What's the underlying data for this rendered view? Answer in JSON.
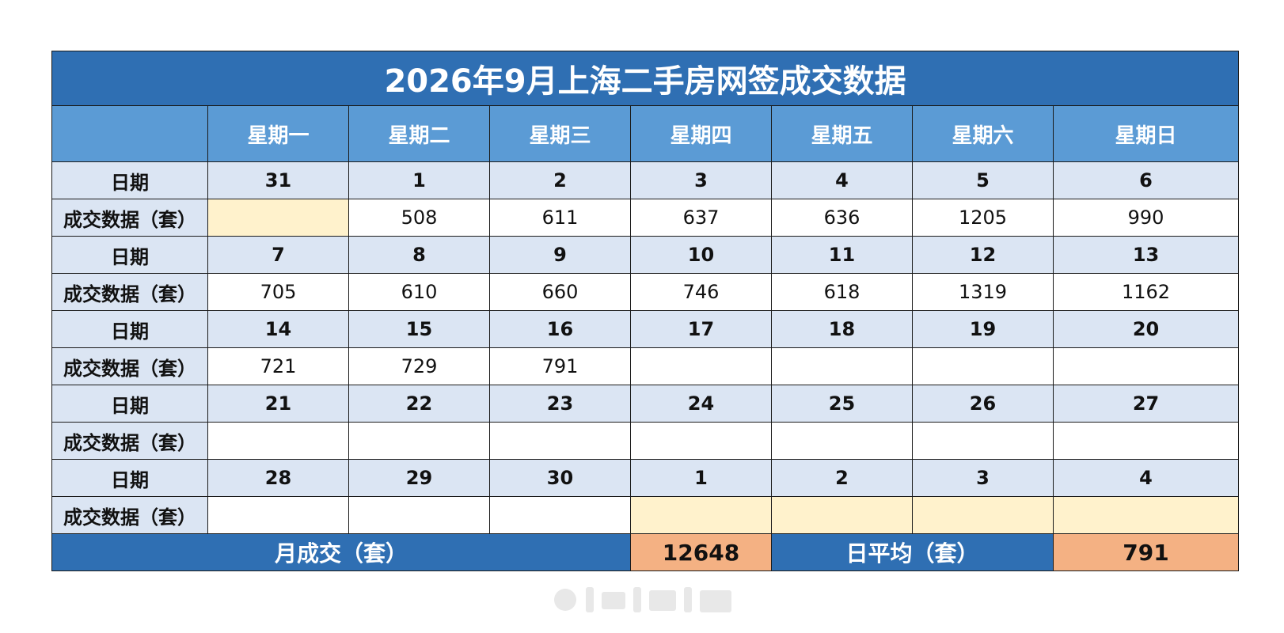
{
  "title": "2026年9月上海二手房网签成交数据",
  "weekdays": [
    "星期一",
    "星期二",
    "星期三",
    "星期四",
    "星期五",
    "星期六",
    "星期日"
  ],
  "date_label": "日期",
  "value_label": "成交数据（套）",
  "weeks": [
    {
      "dates": [
        "31",
        "1",
        "2",
        "3",
        "4",
        "5",
        "6"
      ],
      "values": [
        "",
        "508",
        "611",
        "637",
        "636",
        "1205",
        "990"
      ],
      "out_of_month": [
        true,
        false,
        false,
        false,
        false,
        false,
        false
      ]
    },
    {
      "dates": [
        "7",
        "8",
        "9",
        "10",
        "11",
        "12",
        "13"
      ],
      "values": [
        "705",
        "610",
        "660",
        "746",
        "618",
        "1319",
        "1162"
      ],
      "out_of_month": [
        false,
        false,
        false,
        false,
        false,
        false,
        false
      ]
    },
    {
      "dates": [
        "14",
        "15",
        "16",
        "17",
        "18",
        "19",
        "20"
      ],
      "values": [
        "721",
        "729",
        "791",
        "",
        "",
        "",
        ""
      ],
      "out_of_month": [
        false,
        false,
        false,
        false,
        false,
        false,
        false
      ]
    },
    {
      "dates": [
        "21",
        "22",
        "23",
        "24",
        "25",
        "26",
        "27"
      ],
      "values": [
        "",
        "",
        "",
        "",
        "",
        "",
        ""
      ],
      "out_of_month": [
        false,
        false,
        false,
        false,
        false,
        false,
        false
      ]
    },
    {
      "dates": [
        "28",
        "29",
        "30",
        "1",
        "2",
        "3",
        "4"
      ],
      "values": [
        "",
        "",
        "",
        "",
        "",
        "",
        ""
      ],
      "out_of_month": [
        false,
        false,
        false,
        true,
        true,
        true,
        true
      ]
    }
  ],
  "summary": {
    "monthly_label": "月成交（套）",
    "monthly_value": "12648",
    "daily_label": "日平均（套）",
    "daily_value": "791"
  },
  "colors": {
    "title_bg": "#2f6fb3",
    "header_bg": "#5b9bd5",
    "date_row_bg": "#dbe5f3",
    "out_of_month_bg": "#fff2cc",
    "summary_value_bg": "#f4b183"
  }
}
